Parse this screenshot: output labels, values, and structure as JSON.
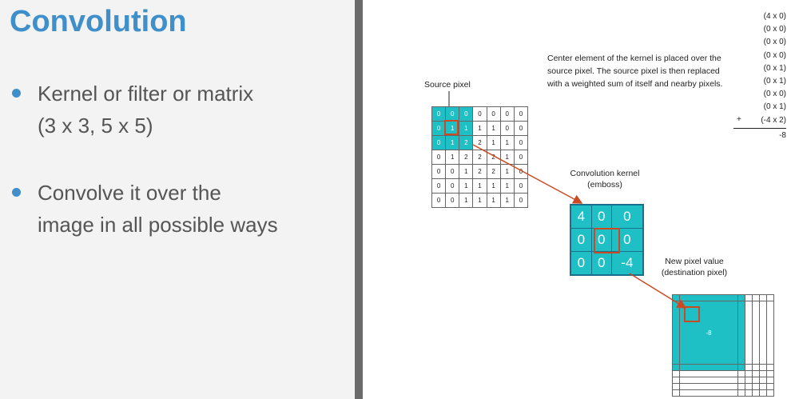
{
  "title": "Convolution",
  "bullets": [
    {
      "line1": "Kernel or filter or matrix",
      "line2": "(3 x 3, 5 x 5)"
    },
    {
      "line1": "Convolve it over the",
      "line2": "image in all possible ways"
    }
  ],
  "source": {
    "label": "Source pixel",
    "cells": [
      [
        "0",
        "0",
        "0",
        "0",
        "0",
        "0",
        "0"
      ],
      [
        "0",
        "1",
        "1",
        "1",
        "1",
        "0",
        "0"
      ],
      [
        "0",
        "1",
        "2",
        "2",
        "1",
        "1",
        "0"
      ],
      [
        "0",
        "1",
        "2",
        "2",
        "2",
        "1",
        "0"
      ],
      [
        "0",
        "0",
        "1",
        "2",
        "2",
        "1",
        "0"
      ],
      [
        "0",
        "0",
        "1",
        "1",
        "1",
        "1",
        "0"
      ],
      [
        "0",
        "0",
        "1",
        "1",
        "1",
        "1",
        "0"
      ]
    ]
  },
  "kernel": {
    "label_line1": "Convolution kernel",
    "label_line2": "(emboss)",
    "cells": [
      [
        "4",
        "0",
        "0"
      ],
      [
        "0",
        "0",
        "0"
      ],
      [
        "0",
        "0",
        "-4"
      ]
    ]
  },
  "destination": {
    "label_line1": "New pixel value",
    "label_line2": "(destination pixel)",
    "value": "-8"
  },
  "description": [
    "Center element of the kernel is placed over the",
    "source pixel. The source pixel is then replaced",
    "with a weighted sum of itself and nearby pixels."
  ],
  "terms": [
    "(4 x 0)",
    "(0 x 0)",
    "(0 x 0)",
    "(0 x 0)",
    "(0 x 1)",
    "(0 x 1)",
    "(0 x 0)",
    "(0 x 1)",
    "(-4 x 2)"
  ],
  "plus": "+",
  "result": "-8",
  "colors": {
    "accent": "#3f8fca",
    "teal": "#1fbfc6",
    "arrow": "#cc4a22"
  }
}
